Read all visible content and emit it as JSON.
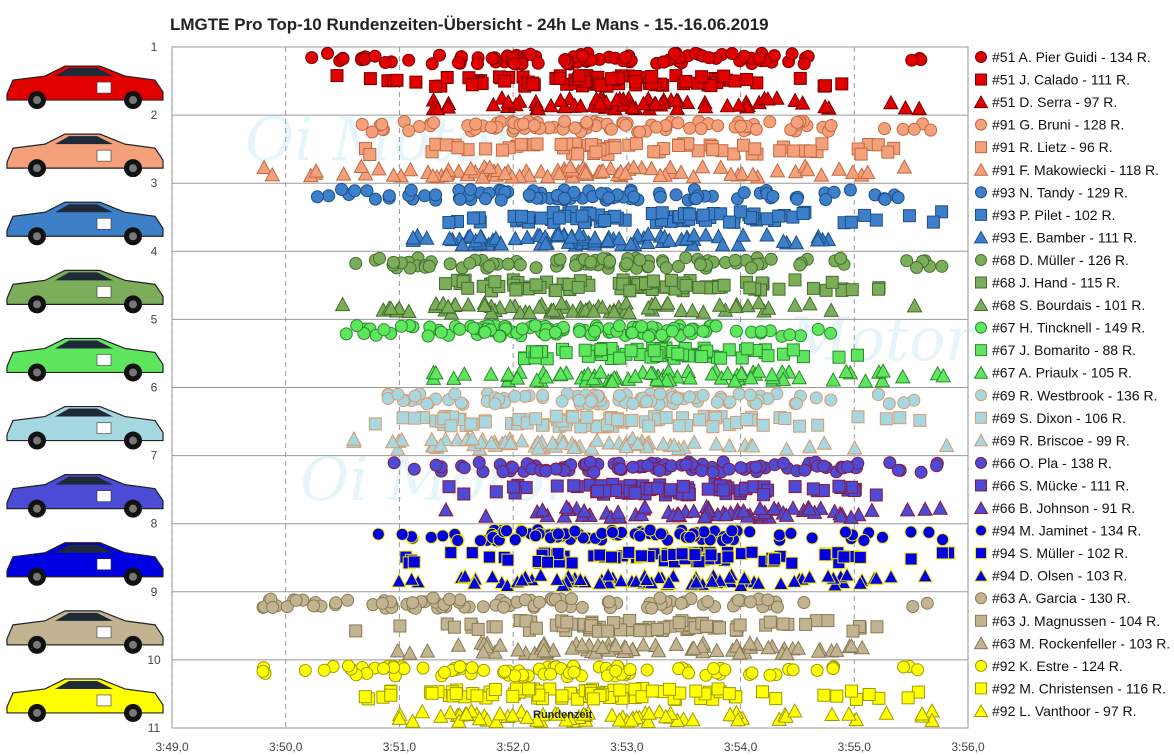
{
  "chart_data": {
    "type": "scatter",
    "title": "LMGTE Pro Top-10 Rundenzeiten-Übersicht - 24h Le Mans - 15.-16.06.2019",
    "xlabel": "Rundenzeit",
    "x_ticks": [
      "3:49,0",
      "3:50,0",
      "3:51,0",
      "3:52,0",
      "3:53,0",
      "3:54,0",
      "3:55,0",
      "3:56,0"
    ],
    "xlim_seconds": [
      229,
      236
    ],
    "ylim": [
      1,
      11
    ],
    "y_ticks": [
      "1",
      "2",
      "3",
      "4",
      "5",
      "6",
      "7",
      "8",
      "9",
      "10",
      "11"
    ],
    "y_reversed": true,
    "grid": "horizontal solid, vertical dashed",
    "legend": "right",
    "cars": [
      {
        "car": "#51",
        "position": 1,
        "color": "#e00000",
        "stroke": "#7a0000",
        "image": "red Ferrari 488 GTE #51"
      },
      {
        "car": "#91",
        "position": 2,
        "color": "#f4a07a",
        "stroke": "#c06a44",
        "image": "white/gold Porsche 911 RSR #91"
      },
      {
        "car": "#93",
        "position": 3,
        "color": "#3d7fc8",
        "stroke": "#1d4f8a",
        "image": "white Porsche 911 RSR #93"
      },
      {
        "car": "#68",
        "position": 4,
        "color": "#7cad5b",
        "stroke": "#436e2c",
        "image": "red/blue Ford GT #68"
      },
      {
        "car": "#67",
        "position": 5,
        "color": "#5fe65f",
        "stroke": "#2b8a2b",
        "image": "red/white Ford GT #67"
      },
      {
        "car": "#69",
        "position": 6,
        "color": "#a6d8e2",
        "stroke": "#d99a6c",
        "image": "white/red Ford GT #69"
      },
      {
        "car": "#66",
        "position": 7,
        "color": "#4b4bd6",
        "stroke": "#8a1a3a",
        "image": "black Ford GT #66"
      },
      {
        "car": "#94",
        "position": 8,
        "color": "#0000e0",
        "stroke": "#f0e800",
        "image": "white Porsche 911 RSR #94"
      },
      {
        "car": "#63",
        "position": 9,
        "color": "#c2b490",
        "stroke": "#8a7a54",
        "image": "yellow Corvette C7.R #63"
      },
      {
        "car": "#92",
        "position": 10,
        "color": "#ffff00",
        "stroke": "#a09a00",
        "image": "white/black Porsche 911 RSR #92"
      }
    ],
    "series": [
      {
        "name": "#51 A. Pier Guidi - 134 R.",
        "car": "#51",
        "marker": "circle",
        "laps": 134,
        "range_seconds": [
          230.05,
          235.6
        ],
        "peak_seconds": 232.6
      },
      {
        "name": "#51 J. Calado - 111 R.",
        "car": "#51",
        "marker": "square",
        "laps": 111,
        "range_seconds": [
          230.4,
          234.9
        ],
        "peak_seconds": 232.7
      },
      {
        "name": "#51 D. Serra - 97 R.",
        "car": "#51",
        "marker": "triangle",
        "laps": 97,
        "range_seconds": [
          231.3,
          235.7
        ],
        "peak_seconds": 232.9
      },
      {
        "name": "#91 G. Bruni - 128 R.",
        "car": "#91",
        "marker": "circle",
        "laps": 128,
        "range_seconds": [
          230.3,
          235.7
        ],
        "peak_seconds": 232.8
      },
      {
        "name": "#91 R. Lietz - 96 R.",
        "car": "#91",
        "marker": "square",
        "laps": 96,
        "range_seconds": [
          230.5,
          235.4
        ],
        "peak_seconds": 233.0
      },
      {
        "name": "#91 F. Makowiecki - 118 R.",
        "car": "#91",
        "marker": "triangle",
        "laps": 118,
        "range_seconds": [
          229.8,
          235.5
        ],
        "peak_seconds": 232.6
      },
      {
        "name": "#93 N. Tandy - 129 R.",
        "car": "#93",
        "marker": "circle",
        "laps": 129,
        "range_seconds": [
          230.15,
          235.5
        ],
        "peak_seconds": 232.2
      },
      {
        "name": "#93 P. Pilet - 102 R.",
        "car": "#93",
        "marker": "square",
        "laps": 102,
        "range_seconds": [
          231.2,
          235.9
        ],
        "peak_seconds": 233.0
      },
      {
        "name": "#93 E. Bamber - 111 R.",
        "car": "#93",
        "marker": "triangle",
        "laps": 111,
        "range_seconds": [
          230.9,
          235.0
        ],
        "peak_seconds": 232.6
      },
      {
        "name": "#68 D. Müller - 126 R.",
        "car": "#68",
        "marker": "circle",
        "laps": 126,
        "range_seconds": [
          230.6,
          235.8
        ],
        "peak_seconds": 232.7
      },
      {
        "name": "#68 J. Hand - 115 R.",
        "car": "#68",
        "marker": "square",
        "laps": 115,
        "range_seconds": [
          231.4,
          235.6
        ],
        "peak_seconds": 233.1
      },
      {
        "name": "#68 S. Bourdais - 101 R.",
        "car": "#68",
        "marker": "triangle",
        "laps": 101,
        "range_seconds": [
          230.5,
          235.6
        ],
        "peak_seconds": 232.6
      },
      {
        "name": "#67 H. Tincknell - 149 R.",
        "car": "#67",
        "marker": "circle",
        "laps": 149,
        "range_seconds": [
          230.3,
          235.0
        ],
        "peak_seconds": 232.3
      },
      {
        "name": "#67 J. Bomarito - 88 R.",
        "car": "#67",
        "marker": "square",
        "laps": 88,
        "range_seconds": [
          232.1,
          235.6
        ],
        "peak_seconds": 233.4
      },
      {
        "name": "#67 A. Priaulx - 105 R.",
        "car": "#67",
        "marker": "triangle",
        "laps": 105,
        "range_seconds": [
          231.3,
          235.9
        ],
        "peak_seconds": 233.2
      },
      {
        "name": "#69 R. Westbrook - 136 R.",
        "car": "#69",
        "marker": "circle",
        "laps": 136,
        "range_seconds": [
          230.9,
          235.6
        ],
        "peak_seconds": 232.6
      },
      {
        "name": "#69 S. Dixon - 106 R.",
        "car": "#69",
        "marker": "square",
        "laps": 106,
        "range_seconds": [
          230.7,
          235.6
        ],
        "peak_seconds": 232.6
      },
      {
        "name": "#69 R. Briscoe - 99 R.",
        "car": "#69",
        "marker": "triangle",
        "laps": 99,
        "range_seconds": [
          230.6,
          235.9
        ],
        "peak_seconds": 232.5
      },
      {
        "name": "#66 O. Pla - 138 R.",
        "car": "#66",
        "marker": "circle",
        "laps": 138,
        "range_seconds": [
          230.9,
          235.8
        ],
        "peak_seconds": 233.4
      },
      {
        "name": "#66 S. Mücke - 111 R.",
        "car": "#66",
        "marker": "square",
        "laps": 111,
        "range_seconds": [
          231.2,
          235.2
        ],
        "peak_seconds": 233.4
      },
      {
        "name": "#66 B. Johnson - 91 R.",
        "car": "#66",
        "marker": "triangle",
        "laps": 91,
        "range_seconds": [
          231.4,
          235.8
        ],
        "peak_seconds": 233.6
      },
      {
        "name": "#94 M. Jaminet - 134 R.",
        "car": "#94",
        "marker": "circle",
        "laps": 134,
        "range_seconds": [
          230.8,
          235.9
        ],
        "peak_seconds": 232.6
      },
      {
        "name": "#94 S. Müller - 102 R.",
        "car": "#94",
        "marker": "square",
        "laps": 102,
        "range_seconds": [
          230.9,
          235.9
        ],
        "peak_seconds": 233.3
      },
      {
        "name": "#94 D. Olsen - 103 R.",
        "car": "#94",
        "marker": "triangle",
        "laps": 103,
        "range_seconds": [
          230.9,
          235.9
        ],
        "peak_seconds": 233.2
      },
      {
        "name": "#63 A. Garcia - 130 R.",
        "car": "#63",
        "marker": "circle",
        "laps": 130,
        "range_seconds": [
          229.8,
          235.7
        ],
        "peak_seconds": 232.0
      },
      {
        "name": "#63 J. Magnussen - 104 R.",
        "car": "#63",
        "marker": "square",
        "laps": 104,
        "range_seconds": [
          230.6,
          235.5
        ],
        "peak_seconds": 232.8
      },
      {
        "name": "#63 M. Rockenfeller - 103 R.",
        "car": "#63",
        "marker": "triangle",
        "laps": 103,
        "range_seconds": [
          230.8,
          235.6
        ],
        "peak_seconds": 233.0
      },
      {
        "name": "#92 K. Estre - 124 R.",
        "car": "#92",
        "marker": "circle",
        "laps": 124,
        "range_seconds": [
          229.8,
          235.9
        ],
        "peak_seconds": 232.2
      },
      {
        "name": "#92 M. Christensen - 116 R.",
        "car": "#92",
        "marker": "square",
        "laps": 116,
        "range_seconds": [
          230.7,
          235.9
        ],
        "peak_seconds": 232.6
      },
      {
        "name": "#92 L. Vanthoor - 97 R.",
        "car": "#92",
        "marker": "triangle",
        "laps": 97,
        "range_seconds": [
          231.0,
          235.8
        ],
        "peak_seconds": 232.6
      }
    ]
  }
}
